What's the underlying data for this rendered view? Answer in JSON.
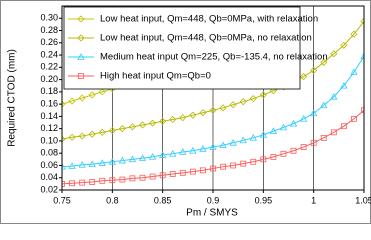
{
  "chart_data": {
    "type": "line",
    "xlabel": "Pm / SMYS",
    "ylabel": "Required CTOD (mm)",
    "x": [
      0.75,
      0.76,
      0.77,
      0.78,
      0.79,
      0.8,
      0.81,
      0.82,
      0.83,
      0.84,
      0.85,
      0.86,
      0.87,
      0.88,
      0.89,
      0.9,
      0.91,
      0.92,
      0.93,
      0.94,
      0.95,
      0.96,
      0.97,
      0.98,
      0.99,
      1.0,
      1.01,
      1.02,
      1.03,
      1.04,
      1.05
    ],
    "series": [
      {
        "name": "Low heat input, Qm=448, Qb=0MPa, with relaxation",
        "color": "#c4c400",
        "marker": "diamond",
        "values": [
          0.16,
          0.165,
          0.17,
          0.175,
          0.18,
          0.185,
          0.191,
          0.198,
          0.205,
          0.212,
          0.22,
          0.23,
          0.24,
          0.252,
          0.265,
          0.28,
          0.3,
          null,
          null,
          null,
          null,
          null,
          null,
          null,
          null,
          null,
          null,
          null,
          null,
          null,
          null
        ]
      },
      {
        "name": "Low heat input, Qm=448, Qb=0MPa, no relaxation",
        "color": "#b8b800",
        "marker": "diamond",
        "values": [
          0.103,
          0.106,
          0.108,
          0.111,
          0.114,
          0.117,
          0.12,
          0.123,
          0.126,
          0.129,
          0.132,
          0.135,
          0.138,
          0.142,
          0.146,
          0.15,
          0.154,
          0.159,
          0.164,
          0.169,
          0.175,
          0.182,
          0.188,
          0.196,
          0.205,
          0.215,
          0.228,
          0.242,
          0.256,
          0.274,
          0.295
        ]
      },
      {
        "name": "Medium heat input Qm=225, Qb=-135.4, no relaxation",
        "color": "#33ccff",
        "marker": "triangle",
        "values": [
          0.058,
          0.059,
          0.061,
          0.062,
          0.064,
          0.066,
          0.068,
          0.07,
          0.072,
          0.074,
          0.077,
          0.079,
          0.082,
          0.084,
          0.087,
          0.09,
          0.093,
          0.097,
          0.101,
          0.105,
          0.11,
          0.116,
          0.122,
          0.128,
          0.136,
          0.145,
          0.158,
          0.172,
          0.19,
          0.212,
          0.238
        ]
      },
      {
        "name": "High heat input Qm=Qb=0",
        "color": "#ff5a5a",
        "marker": "square",
        "values": [
          0.03,
          0.031,
          0.032,
          0.033,
          0.035,
          0.036,
          0.037,
          0.039,
          0.04,
          0.042,
          0.044,
          0.046,
          0.048,
          0.05,
          0.052,
          0.055,
          0.058,
          0.06,
          0.063,
          0.066,
          0.07,
          0.074,
          0.079,
          0.084,
          0.09,
          0.097,
          0.105,
          0.114,
          0.124,
          0.136,
          0.15
        ]
      }
    ],
    "xlim": [
      0.75,
      1.05
    ],
    "xticks": [
      0.75,
      0.8,
      0.85,
      0.9,
      0.95,
      1,
      1.05
    ],
    "ylim": [
      0.02,
      0.32
    ],
    "yticks": [
      0.02,
      0.04,
      0.06,
      0.08,
      {
        "value": 0.1,
        "label": "0.10"
      },
      0.12,
      0.14,
      0.16,
      0.18,
      {
        "value": 0.2,
        "label": "0.20"
      },
      0.22,
      0.24,
      0.26,
      0.28,
      {
        "value": 0.3,
        "label": "0.30"
      }
    ],
    "grid": "x",
    "legend": "upper left"
  }
}
